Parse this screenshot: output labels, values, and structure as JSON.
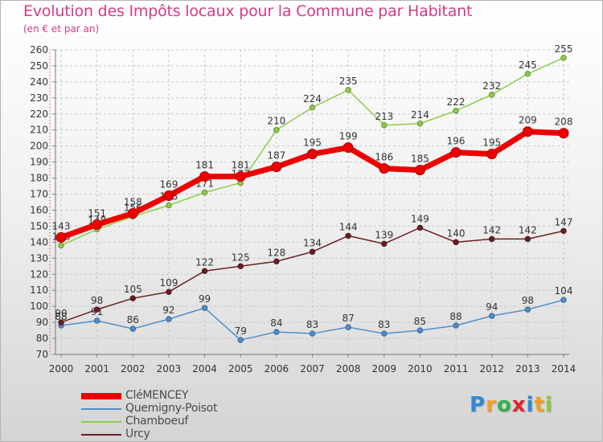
{
  "header": {
    "title": "Evolution des Impôts locaux pour la Commune par Habitant",
    "subtitle": "(en € et par an)"
  },
  "chart_data": {
    "type": "line",
    "x": [
      "2000",
      "2001",
      "2002",
      "2003",
      "2004",
      "2005",
      "2006",
      "2007",
      "2008",
      "2009",
      "2010",
      "2011",
      "2012",
      "2013",
      "2014"
    ],
    "ylim": [
      70,
      260
    ],
    "y_ticks": [
      70,
      80,
      90,
      100,
      110,
      120,
      130,
      140,
      150,
      160,
      170,
      180,
      190,
      200,
      210,
      220,
      230,
      240,
      250,
      260
    ],
    "grid": true,
    "legend_position": "bottom-left",
    "series": [
      {
        "name": "Quemigny-Poisot",
        "color": "#4e8fcc",
        "values": [
          88,
          91,
          86,
          92,
          99,
          79,
          84,
          83,
          87,
          83,
          85,
          88,
          94,
          98,
          104
        ]
      },
      {
        "name": "Chamboeuf",
        "color": "#8dcc4a",
        "values": [
          138,
          148,
          156,
          163,
          171,
          177,
          210,
          224,
          235,
          213,
          214,
          222,
          232,
          245,
          255
        ]
      },
      {
        "name": "Urcy",
        "color": "#6b1f24",
        "values": [
          90,
          98,
          105,
          109,
          122,
          125,
          128,
          134,
          144,
          139,
          149,
          140,
          142,
          142,
          147
        ]
      },
      {
        "name": "CléMENCEY",
        "color": "#ee0000",
        "values": [
          143,
          151,
          158,
          169,
          181,
          181,
          187,
          195,
          199,
          186,
          185,
          196,
          195,
          209,
          208
        ]
      }
    ],
    "legend_order": [
      "CléMENCEY",
      "Quemigny-Poisot",
      "Chamboeuf",
      "Urcy"
    ]
  },
  "logo": {
    "letters": [
      {
        "ch": "P",
        "color": "#2f8ad6"
      },
      {
        "ch": "r",
        "color": "#f0a020"
      },
      {
        "ch": "o",
        "color": "#2fb34a"
      },
      {
        "ch": "x",
        "color": "#e0262b"
      },
      {
        "ch": "i",
        "color": "#2f8ad6"
      },
      {
        "ch": "t",
        "color": "#f0a020"
      },
      {
        "ch": "i",
        "color": "#8dc63f"
      }
    ]
  }
}
